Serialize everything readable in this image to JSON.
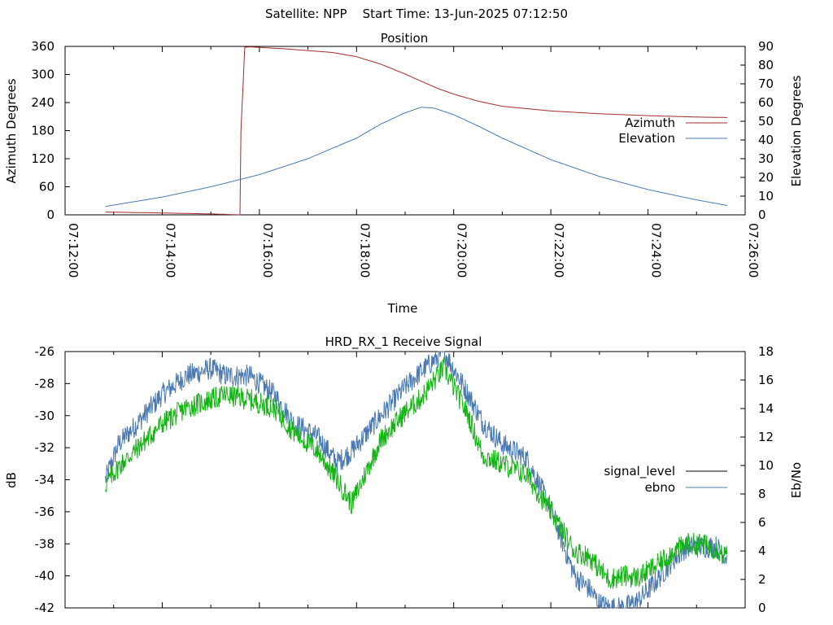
{
  "header": {
    "title": "Satellite: NPP    Start Time: 13-Jun-2025 07:12:50"
  },
  "colors": {
    "azimuth": "#a52a2a",
    "elevation": "#4a78b0",
    "signal_level": "#000000",
    "ebno": "#4a78b0",
    "signal_green": "#11b511"
  },
  "chart_data": [
    {
      "type": "line",
      "title": "Position",
      "xlabel": "Time",
      "ylabel": "Azimuth Degrees",
      "y2label": "Elevation Degrees",
      "x_ticks": [
        "07:12:00",
        "07:14:00",
        "07:16:00",
        "07:18:00",
        "07:20:00",
        "07:22:00",
        "07:24:00",
        "07:26:00"
      ],
      "xlim_minutes": [
        0,
        14
      ],
      "ylim": [
        0,
        360
      ],
      "y_ticks": [
        "0",
        "60",
        "120",
        "180",
        "240",
        "300",
        "360"
      ],
      "y2lim": [
        0,
        90
      ],
      "y2_ticks": [
        "0",
        "10",
        "20",
        "30",
        "40",
        "50",
        "60",
        "70",
        "80",
        "90"
      ],
      "legend_position": "right",
      "series": [
        {
          "name": "Azimuth",
          "axis": "y",
          "x_minutes": [
            0.83,
            2.0,
            3.0,
            3.6,
            3.62,
            3.7,
            3.8,
            4.5,
            5.5,
            6.0,
            6.5,
            7.0,
            7.3,
            7.7,
            8.0,
            8.5,
            9.0,
            10.0,
            11.0,
            12.0,
            13.0,
            13.63
          ],
          "values": [
            6,
            4,
            2,
            0,
            180,
            358,
            359,
            355,
            347,
            338,
            322,
            301,
            287,
            269,
            258,
            243,
            232,
            222,
            216,
            212,
            209,
            208
          ]
        },
        {
          "name": "Elevation",
          "axis": "y2",
          "x_minutes": [
            0.83,
            2.0,
            3.0,
            4.0,
            5.0,
            6.0,
            6.5,
            7.0,
            7.33,
            7.6,
            8.0,
            8.5,
            9.0,
            10.0,
            11.0,
            12.0,
            13.0,
            13.63
          ],
          "values": [
            4.5,
            9.5,
            15,
            21.5,
            30,
            41,
            48.5,
            54.5,
            57.5,
            57,
            53.5,
            47.5,
            41,
            29.5,
            20.5,
            13.5,
            8,
            5
          ]
        }
      ]
    },
    {
      "type": "line",
      "title": "HRD_RX_1 Receive Signal",
      "ylabel": "dB",
      "y2label": "Eb/No",
      "xlim_minutes": [
        0,
        14
      ],
      "ylim": [
        -42,
        -26
      ],
      "y_ticks": [
        "-26",
        "-28",
        "-30",
        "-32",
        "-34",
        "-36",
        "-38",
        "-40",
        "-42"
      ],
      "y2lim": [
        0,
        18
      ],
      "y2_ticks": [
        "0",
        "2",
        "4",
        "6",
        "8",
        "10",
        "12",
        "14",
        "16",
        "18"
      ],
      "legend_position": "right",
      "series": [
        {
          "name": "signal_level",
          "axis": "y",
          "x_minutes": [
            0.83,
            1.1,
            1.5,
            2.0,
            2.5,
            3.0,
            3.3,
            3.8,
            4.3,
            4.7,
            5.2,
            5.6,
            5.9,
            6.5,
            7.0,
            7.3,
            7.8,
            8.3,
            8.6,
            9.0,
            9.5,
            10.0,
            10.3,
            10.5,
            10.8,
            11.0,
            11.2,
            11.5,
            11.8,
            12.2,
            12.5,
            12.8,
            13.1,
            13.4,
            13.63
          ],
          "values": [
            -34.3,
            -33.2,
            -32,
            -30.5,
            -29.5,
            -29,
            -28.7,
            -29,
            -29.5,
            -31,
            -32.2,
            -34,
            -35.5,
            -31.5,
            -29.8,
            -29,
            -27,
            -30,
            -32.5,
            -33,
            -33.7,
            -36,
            -37.5,
            -38.5,
            -38.8,
            -39.6,
            -40.2,
            -40,
            -40.1,
            -39.3,
            -38.5,
            -38,
            -38,
            -38.3,
            -38.8
          ]
        },
        {
          "name": "ebno",
          "axis": "y2",
          "x_minutes": [
            0.83,
            1.1,
            1.5,
            2.0,
            2.5,
            3.0,
            3.3,
            3.8,
            4.3,
            4.7,
            5.2,
            5.6,
            5.9,
            6.5,
            7.0,
            7.3,
            7.8,
            8.3,
            8.6,
            9.0,
            9.5,
            10.0,
            10.3,
            10.5,
            10.8,
            11.0,
            11.2,
            11.5,
            11.8,
            12.2,
            12.5,
            12.8,
            13.1,
            13.4,
            13.63
          ],
          "values": [
            9,
            11.5,
            13,
            15,
            16.3,
            16.8,
            16.3,
            16.3,
            15,
            13,
            12,
            10.2,
            11,
            13.5,
            15.5,
            16.5,
            18,
            15,
            13,
            11.5,
            10.5,
            7,
            4,
            2.2,
            1.3,
            0.3,
            0,
            0,
            0.5,
            2,
            3.3,
            4.3,
            4.3,
            4.3,
            3.5
          ]
        }
      ]
    }
  ]
}
